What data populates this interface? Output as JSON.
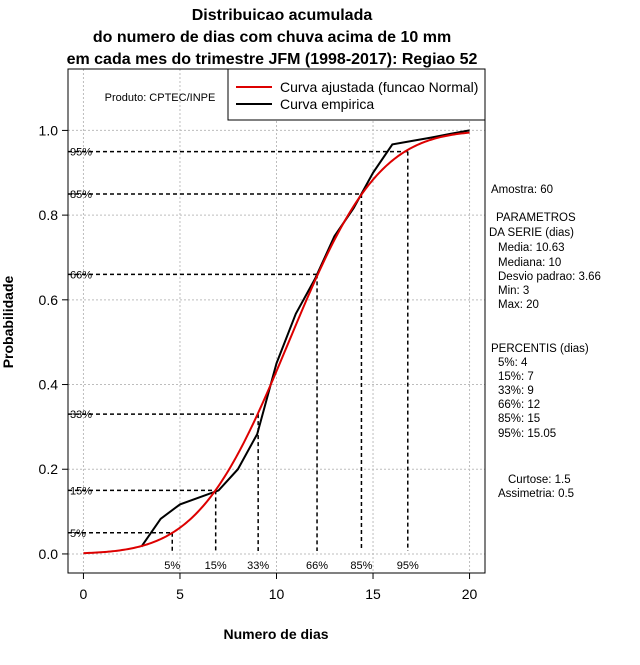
{
  "chart_data": {
    "type": "line",
    "title_lines": [
      "Distribuicao acumulada",
      "do numero de dias com chuva acima de 10 mm",
      "em cada mes do trimestre JFM (1998-2017): Regiao 52"
    ],
    "xlabel": "Numero de dias",
    "ylabel": "Probabilidade",
    "xlim": [
      -0.8,
      20.8
    ],
    "ylim": [
      -0.045,
      1.145
    ],
    "xticks": [
      0,
      5,
      10,
      15,
      20
    ],
    "xtick_labels": [
      "0",
      "5",
      "10",
      "15",
      "20"
    ],
    "yticks": [
      0.0,
      0.2,
      0.4,
      0.6,
      0.8,
      1.0
    ],
    "ytick_labels": [
      "0.0",
      "0.2",
      "0.4",
      "0.6",
      "0.8",
      "1.0"
    ],
    "grid": true,
    "legend_position": "top-right",
    "product_label": "Produto: CPTEC/INPE",
    "series": [
      {
        "name": "Curva ajustada (funcao Normal)",
        "color": "#dd0000",
        "kind": "normal_cdf",
        "mean": 10.63,
        "sd": 3.66,
        "x_range": [
          0,
          20
        ]
      },
      {
        "name": "Curva empirica",
        "color": "#000000",
        "kind": "empirical",
        "x": [
          3,
          4,
          5,
          7,
          8,
          9,
          10,
          11,
          12,
          13,
          14,
          15,
          16,
          17,
          18,
          19,
          20
        ],
        "y": [
          0.017,
          0.083,
          0.117,
          0.15,
          0.2,
          0.283,
          0.45,
          0.567,
          0.65,
          0.75,
          0.817,
          0.9,
          0.967,
          0.975,
          0.983,
          0.992,
          1.0
        ]
      }
    ],
    "percentiles": [
      {
        "label": "5%",
        "value": 4.6,
        "prob": 0.05,
        "y_label": "5%"
      },
      {
        "label": "15%",
        "value": 6.85,
        "prob": 0.15,
        "y_label": "15%"
      },
      {
        "label": "33%",
        "value": 9.05,
        "prob": 0.33,
        "y_label": "33%"
      },
      {
        "label": "66%",
        "value": 12.1,
        "prob": 0.66,
        "y_label": "66%"
      },
      {
        "label": "85%",
        "value": 14.4,
        "prob": 0.85,
        "y_label": "85%"
      },
      {
        "label": "95%",
        "value": 16.8,
        "prob": 0.95,
        "y_label": "95%"
      }
    ]
  },
  "stats_panel": {
    "amostra": "Amostra: 60",
    "param_title_1": "PARAMETROS",
    "param_title_2": "DA SERIE (dias)",
    "params": [
      "Media: 10.63",
      "Mediana: 10",
      "Desvio padrao: 3.66",
      "Min: 3",
      "Max: 20"
    ],
    "percentis_title": "PERCENTIS (dias)",
    "percentis": [
      "5%: 4",
      "15%: 7",
      "33%: 9",
      "66%: 12",
      "85%: 15",
      "95%: 15.05"
    ],
    "curtose": "Curtose: 1.5",
    "assimetria": "Assimetria: 0.5"
  }
}
